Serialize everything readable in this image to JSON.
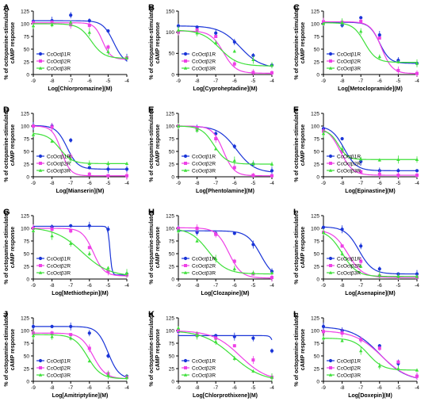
{
  "series_styles": [
    {
      "name": "CcOctβ1R",
      "color": "#1a35d8"
    },
    {
      "name": "CcOctβ2R",
      "color": "#ee40e6"
    },
    {
      "name": "CcOctβ3R",
      "color": "#3ee03a"
    }
  ],
  "chart_data": [
    {
      "panel": "A",
      "type": "line",
      "xlabel": "Log[Chlorpromazine](M)",
      "ylabel": [
        "% of octopamine-stimulated",
        "cAMP response"
      ],
      "xlim": [
        -9,
        -4
      ],
      "ylim": [
        0,
        125
      ],
      "xticks": [
        "-9",
        "-8",
        "-7",
        "-6",
        "-5",
        "-4"
      ],
      "yticks": [
        "0",
        "25",
        "50",
        "75",
        "100",
        "125"
      ],
      "series": [
        {
          "name": "CcOctβ1R",
          "values": [
            105,
            106,
            117,
            106,
            86,
            33
          ],
          "curve": {
            "top": 106,
            "bottom": 20,
            "ec50": -4.7,
            "hill": 1.5
          }
        },
        {
          "name": "CcOctβ2R",
          "values": [
            102,
            103,
            98,
            97,
            54,
            33
          ],
          "curve": {
            "top": 102,
            "bottom": 30,
            "ec50": -5.3,
            "hill": 2
          }
        },
        {
          "name": "CcOctβ3R",
          "values": [
            96,
            98,
            103,
            83,
            45,
            33
          ],
          "curve": {
            "top": 100,
            "bottom": 32,
            "ec50": -5.9,
            "hill": 1.3
          }
        }
      ]
    },
    {
      "panel": "B",
      "type": "line",
      "xlabel": "Log[Cyproheptadine](M)",
      "ylabel": [
        "% of octopamine-stimulated",
        "cAMP response"
      ],
      "xlim": [
        -9,
        -4
      ],
      "ylim": [
        0,
        150
      ],
      "xticks": [
        "-9",
        "-8",
        "-7",
        "-6",
        "-5",
        "-4"
      ],
      "yticks": [
        "0",
        "50",
        "100",
        "150"
      ],
      "series": [
        {
          "name": "CcOctβ1R",
          "values": [
            115,
            112,
            98,
            77,
            45,
            22
          ],
          "curve": {
            "top": 115,
            "bottom": 15,
            "ec50": -5.7,
            "hill": 0.8
          }
        },
        {
          "name": "CcOctβ2R",
          "values": [
            100,
            105,
            90,
            25,
            5,
            4
          ],
          "curve": {
            "top": 103,
            "bottom": 3,
            "ec50": -6.6,
            "hill": 1.3
          }
        },
        {
          "name": "CcOctβ3R",
          "values": [
            105,
            98,
            75,
            55,
            35,
            22
          ],
          "curve": {
            "top": 105,
            "bottom": 20,
            "ec50": -6.8,
            "hill": 0.9
          }
        }
      ]
    },
    {
      "panel": "C",
      "type": "line",
      "xlabel": "Log[Metoclopramide](M)",
      "ylabel": [
        "% of octopamine-stimulated",
        "cAMP response"
      ],
      "xlim": [
        -9,
        -4
      ],
      "ylim": [
        0,
        125
      ],
      "xticks": [
        "-9",
        "-8",
        "-7",
        "-6",
        "-5",
        "-4"
      ],
      "yticks": [
        "0",
        "25",
        "50",
        "75",
        "100",
        "125"
      ],
      "series": [
        {
          "name": "CcOctβ1R",
          "values": [
            102,
            97,
            112,
            78,
            28,
            22
          ],
          "curve": {
            "top": 103,
            "bottom": 22,
            "ec50": -6.0,
            "hill": 1.6
          }
        },
        {
          "name": "CcOctβ2R",
          "values": [
            104,
            103,
            105,
            72,
            8,
            2
          ],
          "curve": {
            "top": 104,
            "bottom": 2,
            "ec50": -5.9,
            "hill": 1.5
          }
        },
        {
          "name": "CcOctβ3R",
          "values": [
            100,
            103,
            85,
            35,
            25,
            22
          ],
          "curve": {
            "top": 102,
            "bottom": 24,
            "ec50": -6.8,
            "hill": 1.4
          }
        }
      ]
    },
    {
      "panel": "D",
      "type": "line",
      "xlabel": "Log[Mianserin](M)",
      "ylabel": [
        "% of octopamine-stimulated",
        "cAMP response"
      ],
      "xlim": [
        -9,
        -4
      ],
      "ylim": [
        0,
        125
      ],
      "xticks": [
        "-9",
        "-8",
        "-7",
        "-6",
        "-5",
        "-4"
      ],
      "yticks": [
        "0",
        "25",
        "50",
        "75",
        "100",
        "125"
      ],
      "series": [
        {
          "name": "CcOctβ1R",
          "values": [
            100,
            100,
            72,
            18,
            15,
            15
          ],
          "curve": {
            "top": 101,
            "bottom": 15,
            "ec50": -7.2,
            "hill": 1.5
          }
        },
        {
          "name": "CcOctβ2R",
          "values": [
            100,
            98,
            40,
            5,
            2,
            2
          ],
          "curve": {
            "top": 100,
            "bottom": 2,
            "ec50": -7.5,
            "hill": 1.8
          }
        },
        {
          "name": "CcOctβ3R",
          "values": [
            83,
            70,
            35,
            26,
            26,
            26
          ],
          "curve": {
            "top": 86,
            "bottom": 26,
            "ec50": -7.6,
            "hill": 1.3
          }
        }
      ]
    },
    {
      "panel": "E",
      "type": "line",
      "xlabel": "Log[Phentolamine](M)",
      "ylabel": [
        "% of octopamine-stimulated",
        "cAMP response"
      ],
      "xlim": [
        -9,
        -4
      ],
      "ylim": [
        0,
        125
      ],
      "xticks": [
        "-9",
        "-8",
        "-7",
        "-6",
        "-5",
        "-4"
      ],
      "yticks": [
        "0",
        "25",
        "50",
        "75",
        "100",
        "125"
      ],
      "series": [
        {
          "name": "CcOctβ1R",
          "values": [
            100,
            95,
            85,
            60,
            25,
            12
          ],
          "curve": {
            "top": 100,
            "bottom": 8,
            "ec50": -5.9,
            "hill": 0.9
          }
        },
        {
          "name": "CcOctβ2R",
          "values": [
            100,
            95,
            75,
            18,
            3,
            2
          ],
          "curve": {
            "top": 100,
            "bottom": 2,
            "ec50": -6.6,
            "hill": 1.5
          }
        },
        {
          "name": "CcOctβ3R",
          "values": [
            100,
            92,
            55,
            32,
            26,
            25
          ],
          "curve": {
            "top": 100,
            "bottom": 25,
            "ec50": -7.1,
            "hill": 1.3
          }
        }
      ]
    },
    {
      "panel": "F",
      "type": "line",
      "xlabel": "Log[Epinastine](M)",
      "ylabel": [
        "% of octopamine-stimulated",
        "cAMP response"
      ],
      "xlim": [
        -9,
        -4
      ],
      "ylim": [
        0,
        125
      ],
      "xticks": [
        "-9",
        "-8",
        "-7",
        "-6",
        "-5",
        "-4"
      ],
      "yticks": [
        "0",
        "25",
        "50",
        "75",
        "100",
        "125"
      ],
      "series": [
        {
          "name": "CcOctβ1R",
          "values": [
            95,
            75,
            30,
            12,
            12,
            12
          ],
          "curve": {
            "top": 100,
            "bottom": 12,
            "ec50": -7.9,
            "hill": 1.3
          }
        },
        {
          "name": "CcOctβ2R",
          "values": [
            90,
            50,
            10,
            5,
            3,
            3
          ],
          "curve": {
            "top": 98,
            "bottom": 3,
            "ec50": -8.1,
            "hill": 1.3
          }
        },
        {
          "name": "CcOctβ3R",
          "values": [
            85,
            55,
            35,
            33,
            34,
            34
          ],
          "curve": {
            "top": 92,
            "bottom": 34,
            "ec50": -8.2,
            "hill": 1.8
          }
        }
      ]
    },
    {
      "panel": "G",
      "type": "line",
      "xlabel": "Log[Methiothepin](M)",
      "ylabel": [
        "% of octopamine-stimulated",
        "cAMP response"
      ],
      "xlim": [
        -9,
        -4
      ],
      "ylim": [
        0,
        125
      ],
      "xticks": [
        "-9",
        "-8",
        "-7",
        "-6",
        "-5",
        "-4"
      ],
      "yticks": [
        "0",
        "25",
        "50",
        "75",
        "100",
        "125"
      ],
      "series": [
        {
          "name": "CcOctβ1R",
          "values": [
            100,
            103,
            105,
            105,
            98,
            10
          ],
          "curve": {
            "top": 104,
            "bottom": 8,
            "ec50": -4.9,
            "hill": 8
          }
        },
        {
          "name": "CcOctβ2R",
          "values": [
            100,
            98,
            95,
            62,
            15,
            8
          ],
          "curve": {
            "top": 100,
            "bottom": 6,
            "ec50": -5.8,
            "hill": 1.5
          }
        },
        {
          "name": "CcOctβ3R",
          "values": [
            95,
            85,
            70,
            50,
            22,
            12
          ],
          "curve": {
            "top": 102,
            "bottom": 5,
            "ec50": -6.4,
            "hill": 0.6
          }
        }
      ]
    },
    {
      "panel": "H",
      "type": "line",
      "xlabel": "Log[Clozapine](M)",
      "ylabel": [
        "% of octopamine-stimulated",
        "cAMP response"
      ],
      "xlim": [
        -9,
        -4
      ],
      "ylim": [
        0,
        125
      ],
      "xticks": [
        "-9",
        "-8",
        "-7",
        "-6",
        "-5",
        "-4"
      ],
      "yticks": [
        "0",
        "25",
        "50",
        "75",
        "100",
        "125"
      ],
      "series": [
        {
          "name": "CcOctβ1R",
          "values": [
            98,
            92,
            90,
            90,
            68,
            15
          ],
          "curve": {
            "top": 95,
            "bottom": 0,
            "ec50": -4.6,
            "hill": 1.2
          }
        },
        {
          "name": "CcOctβ2R",
          "values": [
            100,
            100,
            88,
            35,
            10,
            3
          ],
          "curve": {
            "top": 101,
            "bottom": 2,
            "ec50": -6.3,
            "hill": 1.3
          }
        },
        {
          "name": "CcOctβ3R",
          "values": [
            95,
            75,
            40,
            20,
            12,
            12
          ],
          "curve": {
            "top": 100,
            "bottom": 10,
            "ec50": -7.4,
            "hill": 0.9
          }
        }
      ]
    },
    {
      "panel": "I",
      "type": "line",
      "xlabel": "Log[Asenapine](M)",
      "ylabel": [
        "% of octopamine-stimulated",
        "cAMP response"
      ],
      "xlim": [
        -9,
        -4
      ],
      "ylim": [
        0,
        125
      ],
      "xticks": [
        "-9",
        "-8",
        "-7",
        "-6",
        "-5",
        "-4"
      ],
      "yticks": [
        "0",
        "25",
        "50",
        "75",
        "100",
        "125"
      ],
      "series": [
        {
          "name": "CcOctβ1R",
          "values": [
            102,
            98,
            65,
            20,
            10,
            10
          ],
          "curve": {
            "top": 103,
            "bottom": 10,
            "ec50": -7.1,
            "hill": 1.2
          }
        },
        {
          "name": "CcOctβ2R",
          "values": [
            92,
            65,
            35,
            6,
            3,
            3
          ],
          "curve": {
            "top": 97,
            "bottom": 3,
            "ec50": -7.7,
            "hill": 1.1
          }
        },
        {
          "name": "CcOctβ3R",
          "values": [
            92,
            50,
            25,
            8,
            5,
            5
          ],
          "curve": {
            "top": 97,
            "bottom": 5,
            "ec50": -8.0,
            "hill": 1.1
          }
        }
      ]
    },
    {
      "panel": "J",
      "type": "line",
      "xlabel": "Log[Amitriptyline](M)",
      "ylabel": [
        "% of octopamine-stimulated",
        "cAMP response"
      ],
      "xlim": [
        -9,
        -4
      ],
      "ylim": [
        0,
        125
      ],
      "xticks": [
        "-9",
        "-8",
        "-7",
        "-6",
        "-5",
        "-4"
      ],
      "yticks": [
        "0",
        "25",
        "50",
        "75",
        "100",
        "125"
      ],
      "series": [
        {
          "name": "CcOctβ1R",
          "values": [
            108,
            108,
            108,
            95,
            50,
            10
          ],
          "curve": {
            "top": 108,
            "bottom": 5,
            "ec50": -5.0,
            "hill": 1.5
          }
        },
        {
          "name": "CcOctβ2R",
          "values": [
            95,
            95,
            92,
            65,
            15,
            8
          ],
          "curve": {
            "top": 95,
            "bottom": 5,
            "ec50": -5.8,
            "hill": 1.3
          }
        },
        {
          "name": "CcOctβ3R",
          "values": [
            90,
            88,
            85,
            40,
            12,
            8
          ],
          "curve": {
            "top": 92,
            "bottom": 5,
            "ec50": -6.1,
            "hill": 1.2
          }
        }
      ]
    },
    {
      "panel": "K",
      "type": "line",
      "xlabel": "Log[Chlorprothixene](M)",
      "ylabel": [
        "% of octopamine-stimulated",
        "cAMP response"
      ],
      "xlim": [
        -9,
        -4
      ],
      "ylim": [
        0,
        125
      ],
      "xticks": [
        "-9",
        "-8",
        "-7",
        "-6",
        "-5",
        "-4"
      ],
      "yticks": [
        "0",
        "25",
        "50",
        "75",
        "100",
        "125"
      ],
      "series": [
        {
          "name": "CcOctβ1R",
          "values": [
            98,
            90,
            90,
            88,
            85,
            60
          ],
          "curve": {
            "top": 90,
            "bottom": 0,
            "ec50": -3.8,
            "hill": 5
          }
        },
        {
          "name": "CcOctβ2R",
          "values": [
            100,
            92,
            85,
            70,
            42,
            8
          ],
          "curve": {
            "top": 100,
            "bottom": 0,
            "ec50": -5.7,
            "hill": 0.6
          }
        },
        {
          "name": "CcOctβ3R",
          "values": [
            105,
            90,
            78,
            45,
            20,
            8
          ],
          "curve": {
            "top": 100,
            "bottom": 0,
            "ec50": -6.1,
            "hill": 0.55
          }
        }
      ]
    },
    {
      "panel": "L",
      "type": "line",
      "xlabel": "Log[Doxepin](M)",
      "ylabel": [
        "% of octopamine-stimulated",
        "cAMP response"
      ],
      "xlim": [
        -9,
        -4
      ],
      "ylim": [
        0,
        125
      ],
      "xticks": [
        "-9",
        "-8",
        "-7",
        "-6",
        "-5",
        "-4"
      ],
      "yticks": [
        "0",
        "25",
        "50",
        "75",
        "100",
        "125"
      ],
      "series": [
        {
          "name": "CcOctβ1R",
          "values": [
            108,
            100,
            82,
            70,
            35,
            10
          ],
          "curve": {
            "top": 108,
            "bottom": 0,
            "ec50": -6.0,
            "hill": 0.6
          }
        },
        {
          "name": "CcOctβ2R",
          "values": [
            98,
            95,
            82,
            65,
            38,
            10
          ],
          "curve": {
            "top": 100,
            "bottom": 0,
            "ec50": -5.9,
            "hill": 0.6
          }
        },
        {
          "name": "CcOctβ3R",
          "values": [
            85,
            80,
            60,
            30,
            25,
            22
          ],
          "curve": {
            "top": 85,
            "bottom": 22,
            "ec50": -6.6,
            "hill": 1.1
          }
        }
      ]
    }
  ]
}
